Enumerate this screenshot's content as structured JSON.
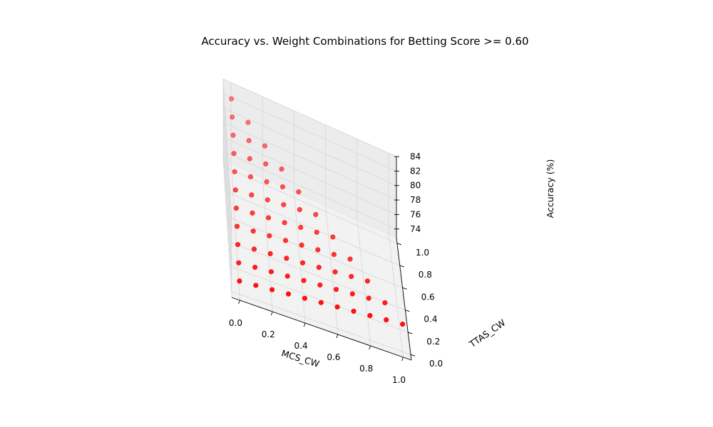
{
  "chart_data": {
    "type": "scatter",
    "projection": "3d",
    "title": "Accuracy vs. Weight Combinations for Betting Score >= 0.60",
    "xlabel": "MCS_CW",
    "ylabel": "TTAS_CW",
    "zlabel": "Accuracy (%)",
    "xlim": [
      -0.05,
      1.05
    ],
    "ylim": [
      -0.05,
      1.05
    ],
    "zlim": [
      72.8,
      84.0
    ],
    "x_ticks": [
      "0.0",
      "0.2",
      "0.4",
      "0.6",
      "0.8",
      "1.0"
    ],
    "y_ticks": [
      "0.0",
      "0.2",
      "0.4",
      "0.6",
      "0.8",
      "1.0"
    ],
    "z_ticks": [
      "74",
      "76",
      "78",
      "80",
      "82",
      "84"
    ],
    "x_tick_values": [
      0,
      0.2,
      0.4,
      0.6,
      0.8,
      1.0
    ],
    "y_tick_values": [
      0,
      0.2,
      0.4,
      0.6,
      0.8,
      1.0
    ],
    "z_tick_values": [
      74,
      76,
      78,
      80,
      82,
      84
    ],
    "grid": true,
    "marker_color": "#ff0000",
    "pane_color": "#f2f2f2",
    "grid_color": "#d6d6d6",
    "series": [
      {
        "points": [
          {
            "x": 0.0,
            "y": 0.0,
            "z": 74.6
          },
          {
            "x": 0.0,
            "y": 0.1,
            "z": 75.4
          },
          {
            "x": 0.0,
            "y": 0.2,
            "z": 76.2
          },
          {
            "x": 0.0,
            "y": 0.3,
            "z": 77.0
          },
          {
            "x": 0.0,
            "y": 0.4,
            "z": 77.8
          },
          {
            "x": 0.0,
            "y": 0.5,
            "z": 78.6
          },
          {
            "x": 0.0,
            "y": 0.6,
            "z": 79.4
          },
          {
            "x": 0.0,
            "y": 0.7,
            "z": 80.2
          },
          {
            "x": 0.0,
            "y": 0.8,
            "z": 81.0
          },
          {
            "x": 0.0,
            "y": 0.9,
            "z": 81.8
          },
          {
            "x": 0.0,
            "y": 1.0,
            "z": 82.6
          },
          {
            "x": 0.1,
            "y": 0.0,
            "z": 74.8
          },
          {
            "x": 0.1,
            "y": 0.1,
            "z": 75.6
          },
          {
            "x": 0.1,
            "y": 0.2,
            "z": 76.4
          },
          {
            "x": 0.1,
            "y": 0.3,
            "z": 77.2
          },
          {
            "x": 0.1,
            "y": 0.4,
            "z": 78.0
          },
          {
            "x": 0.1,
            "y": 0.5,
            "z": 78.8
          },
          {
            "x": 0.1,
            "y": 0.6,
            "z": 79.6
          },
          {
            "x": 0.1,
            "y": 0.7,
            "z": 80.4
          },
          {
            "x": 0.1,
            "y": 0.8,
            "z": 81.2
          },
          {
            "x": 0.1,
            "y": 0.9,
            "z": 82.0
          },
          {
            "x": 0.2,
            "y": 0.0,
            "z": 75.0
          },
          {
            "x": 0.2,
            "y": 0.1,
            "z": 75.8
          },
          {
            "x": 0.2,
            "y": 0.2,
            "z": 76.6
          },
          {
            "x": 0.2,
            "y": 0.3,
            "z": 77.4
          },
          {
            "x": 0.2,
            "y": 0.4,
            "z": 78.2
          },
          {
            "x": 0.2,
            "y": 0.5,
            "z": 79.0
          },
          {
            "x": 0.2,
            "y": 0.6,
            "z": 79.8
          },
          {
            "x": 0.2,
            "y": 0.7,
            "z": 80.6
          },
          {
            "x": 0.2,
            "y": 0.8,
            "z": 81.4
          },
          {
            "x": 0.3,
            "y": 0.0,
            "z": 75.2
          },
          {
            "x": 0.3,
            "y": 0.1,
            "z": 76.0
          },
          {
            "x": 0.3,
            "y": 0.2,
            "z": 76.8
          },
          {
            "x": 0.3,
            "y": 0.3,
            "z": 77.6
          },
          {
            "x": 0.3,
            "y": 0.4,
            "z": 78.4
          },
          {
            "x": 0.3,
            "y": 0.5,
            "z": 79.2
          },
          {
            "x": 0.3,
            "y": 0.6,
            "z": 80.0
          },
          {
            "x": 0.3,
            "y": 0.7,
            "z": 80.8
          },
          {
            "x": 0.4,
            "y": 0.0,
            "z": 75.4
          },
          {
            "x": 0.4,
            "y": 0.1,
            "z": 76.2
          },
          {
            "x": 0.4,
            "y": 0.2,
            "z": 77.0
          },
          {
            "x": 0.4,
            "y": 0.3,
            "z": 77.8
          },
          {
            "x": 0.4,
            "y": 0.4,
            "z": 78.6
          },
          {
            "x": 0.4,
            "y": 0.5,
            "z": 79.4
          },
          {
            "x": 0.4,
            "y": 0.6,
            "z": 80.2
          },
          {
            "x": 0.5,
            "y": 0.0,
            "z": 75.6
          },
          {
            "x": 0.5,
            "y": 0.1,
            "z": 76.4
          },
          {
            "x": 0.5,
            "y": 0.2,
            "z": 77.2
          },
          {
            "x": 0.5,
            "y": 0.3,
            "z": 78.0
          },
          {
            "x": 0.5,
            "y": 0.4,
            "z": 78.8
          },
          {
            "x": 0.5,
            "y": 0.5,
            "z": 79.6
          },
          {
            "x": 0.6,
            "y": 0.0,
            "z": 75.8
          },
          {
            "x": 0.6,
            "y": 0.1,
            "z": 76.6
          },
          {
            "x": 0.6,
            "y": 0.2,
            "z": 77.4
          },
          {
            "x": 0.6,
            "y": 0.3,
            "z": 78.2
          },
          {
            "x": 0.6,
            "y": 0.4,
            "z": 79.0
          },
          {
            "x": 0.7,
            "y": 0.0,
            "z": 76.0
          },
          {
            "x": 0.7,
            "y": 0.1,
            "z": 76.8
          },
          {
            "x": 0.7,
            "y": 0.2,
            "z": 77.6
          },
          {
            "x": 0.7,
            "y": 0.3,
            "z": 78.4
          },
          {
            "x": 0.8,
            "y": 0.0,
            "z": 76.2
          },
          {
            "x": 0.8,
            "y": 0.1,
            "z": 77.0
          },
          {
            "x": 0.8,
            "y": 0.2,
            "z": 77.8
          },
          {
            "x": 0.9,
            "y": 0.0,
            "z": 76.4
          },
          {
            "x": 0.9,
            "y": 0.1,
            "z": 77.2
          },
          {
            "x": 1.0,
            "y": 0.0,
            "z": 76.6
          }
        ]
      }
    ]
  }
}
